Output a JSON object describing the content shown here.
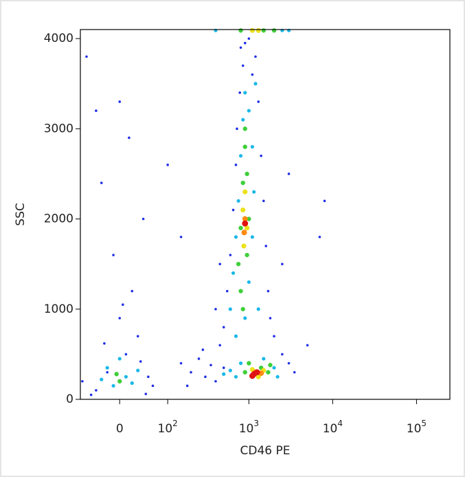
{
  "chart_data": {
    "type": "scatter",
    "xlabel": "CD46 PE",
    "ylabel": "SSC",
    "xscale": "logicle",
    "xlim": [
      -75,
      250000
    ],
    "ylim": [
      0,
      4100
    ],
    "xticks": [
      0,
      {
        "value": 100,
        "label": "10^2"
      },
      {
        "value": 1000,
        "label": "10^3"
      },
      {
        "value": 10000,
        "label": "10^4"
      },
      {
        "value": 100000,
        "label": "10^5"
      }
    ],
    "yticks": [
      0,
      1000,
      2000,
      3000,
      4000
    ],
    "series": [
      {
        "color": "#1f2fe6",
        "x": [
          -40,
          -20,
          10,
          30,
          -50,
          50,
          0,
          20,
          -10,
          40,
          -30,
          15,
          0,
          -60,
          60,
          -70,
          35,
          -25,
          5,
          45,
          150,
          200,
          250,
          300,
          350,
          400,
          450,
          500,
          180,
          280,
          500,
          550,
          600,
          650,
          700,
          720,
          780,
          850,
          900,
          1200,
          1300,
          1400,
          1500,
          1600,
          1700,
          1800,
          2000,
          2500,
          3000,
          3500,
          400,
          450,
          1100,
          1000,
          800,
          5000,
          7000,
          8000,
          2500,
          3000,
          150,
          100,
          -40
        ],
        "y": [
          100,
          300,
          500,
          700,
          50,
          250,
          900,
          1200,
          1600,
          2000,
          2400,
          2900,
          3300,
          3800,
          150,
          200,
          420,
          620,
          1050,
          60,
          400,
          300,
          450,
          250,
          380,
          200,
          600,
          350,
          150,
          550,
          800,
          1200,
          1600,
          2100,
          2600,
          3000,
          3400,
          3700,
          3950,
          3800,
          3300,
          2700,
          2200,
          1700,
          1200,
          900,
          700,
          500,
          400,
          300,
          1000,
          1500,
          3600,
          4000,
          3900,
          600,
          1800,
          2200,
          1500,
          2500,
          1800,
          2600,
          3200
        ]
      },
      {
        "color": "#19b8e8",
        "x": [
          -10,
          10,
          -20,
          20,
          0,
          -30,
          30,
          600,
          650,
          700,
          750,
          800,
          850,
          900,
          1000,
          1100,
          1150,
          1100,
          1000,
          900,
          700,
          1300,
          1200,
          800,
          1500,
          2000,
          2200,
          700,
          600,
          500,
          400,
          2500,
          3000
        ],
        "y": [
          150,
          250,
          350,
          180,
          450,
          220,
          320,
          1000,
          1400,
          1800,
          2200,
          2700,
          3100,
          3400,
          3200,
          2800,
          2300,
          1800,
          1300,
          900,
          700,
          1000,
          3500,
          400,
          450,
          350,
          250,
          250,
          320,
          280,
          4090,
          4090,
          4090
        ]
      },
      {
        "color": "#3fcf3a",
        "x": [
          0,
          -5,
          750,
          800,
          850,
          900,
          950,
          1000,
          950,
          800,
          850,
          900,
          900,
          1400,
          1700,
          1000,
          1800,
          800,
          1500,
          2000
        ],
        "y": [
          200,
          280,
          1500,
          1900,
          2400,
          2800,
          2500,
          2000,
          1600,
          1200,
          1000,
          3000,
          300,
          350,
          300,
          400,
          380,
          4090,
          4090,
          4090
        ]
      },
      {
        "color": "#ece21c",
        "x": [
          850,
          900,
          950,
          870,
          1100,
          1500,
          1300,
          1100,
          1300
        ],
        "y": [
          2100,
          2300,
          1900,
          1700,
          330,
          320,
          250,
          4090,
          4090
        ]
      },
      {
        "color": "#ff8a10",
        "x": [
          900,
          880,
          1200,
          1400
        ],
        "y": [
          2000,
          1850,
          300,
          290
        ]
      },
      {
        "color": "#e01212",
        "x": [
          900,
          1150,
          1250,
          1100
        ],
        "y": [
          1950,
          280,
          300,
          260
        ]
      }
    ]
  }
}
